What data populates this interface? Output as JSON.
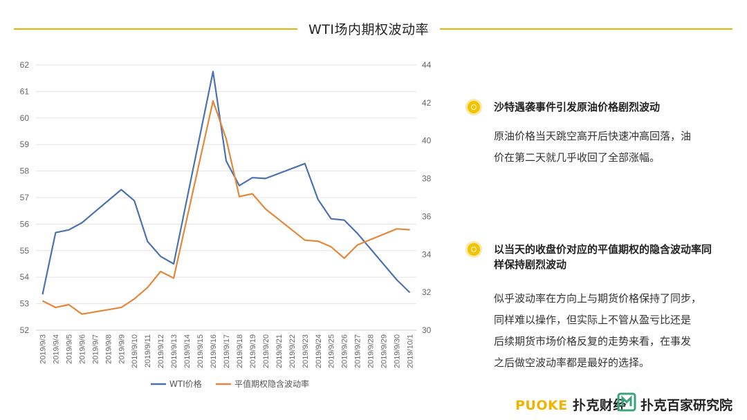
{
  "page": {
    "title": "WTI场内期权波动率"
  },
  "chart_data": {
    "type": "line",
    "categories": [
      "2019/9/3",
      "2019/9/4",
      "2019/9/5",
      "2019/9/6",
      "2019/9/7",
      "2019/9/8",
      "2019/9/9",
      "2019/9/10",
      "2019/9/11",
      "2019/9/12",
      "2019/9/13",
      "2019/9/14",
      "2019/9/15",
      "2019/9/16",
      "2019/9/17",
      "2019/9/18",
      "2019/9/19",
      "2019/9/20",
      "2019/9/21",
      "2019/9/22",
      "2019/9/23",
      "2019/9/24",
      "2019/9/25",
      "2019/9/26",
      "2019/9/27",
      "2019/9/28",
      "2019/9/29",
      "2019/9/30",
      "2019/10/1"
    ],
    "series": [
      {
        "name": "WTI价格",
        "axis": "left",
        "color": "#4a72b0",
        "values": [
          53.35,
          55.68,
          55.78,
          56.05,
          null,
          null,
          57.3,
          56.88,
          55.35,
          54.78,
          54.5,
          null,
          null,
          61.75,
          58.38,
          57.45,
          57.75,
          57.72,
          null,
          null,
          58.28,
          56.93,
          56.2,
          56.15,
          55.65,
          null,
          null,
          53.9,
          53.42
        ]
      },
      {
        "name": "平值期权隐含波动率",
        "axis": "right",
        "color": "#e5873a",
        "values": [
          31.55,
          31.2,
          31.35,
          30.85,
          null,
          null,
          31.2,
          31.65,
          32.25,
          33.1,
          32.75,
          null,
          null,
          42.1,
          40.1,
          37.05,
          37.2,
          36.4,
          null,
          null,
          34.75,
          34.7,
          34.4,
          33.8,
          34.5,
          null,
          null,
          35.35,
          35.3
        ]
      }
    ],
    "y_left": {
      "min": 52,
      "max": 62,
      "ticks": [
        52,
        53,
        54,
        55,
        56,
        57,
        58,
        59,
        60,
        61,
        62
      ]
    },
    "y_right": {
      "min": 30,
      "max": 44,
      "ticks": [
        30,
        32,
        34,
        36,
        38,
        40,
        42,
        44
      ]
    },
    "grid": true,
    "legend_position": "bottom"
  },
  "notes": [
    {
      "heading": "沙特遇袭事件引发原油价格剧烈波动",
      "lines": [
        "原油价格当天跳空高开后快速冲高回落，油",
        "价在第二天就几乎收回了全部涨幅。"
      ]
    },
    {
      "heading_lines": [
        "以当天的收盘价对应的平值期权的隐含波动率同",
        "样保持剧烈波动"
      ],
      "lines": [
        "似乎波动率在方向上与期货价格保持了同步，",
        "同样难以操作，但实际上不管从盈亏比还是",
        "后续期货市场价格反复的走势来看，在事发",
        "之后做空波动率都是最好的选择。"
      ]
    }
  ],
  "brand": {
    "logo1_en": "PUOKE",
    "logo1_cn": "扑克财经",
    "logo2_cn": "扑克百家研究院",
    "accent_color": "#f0b400",
    "icon_color": "#3aa37a"
  }
}
